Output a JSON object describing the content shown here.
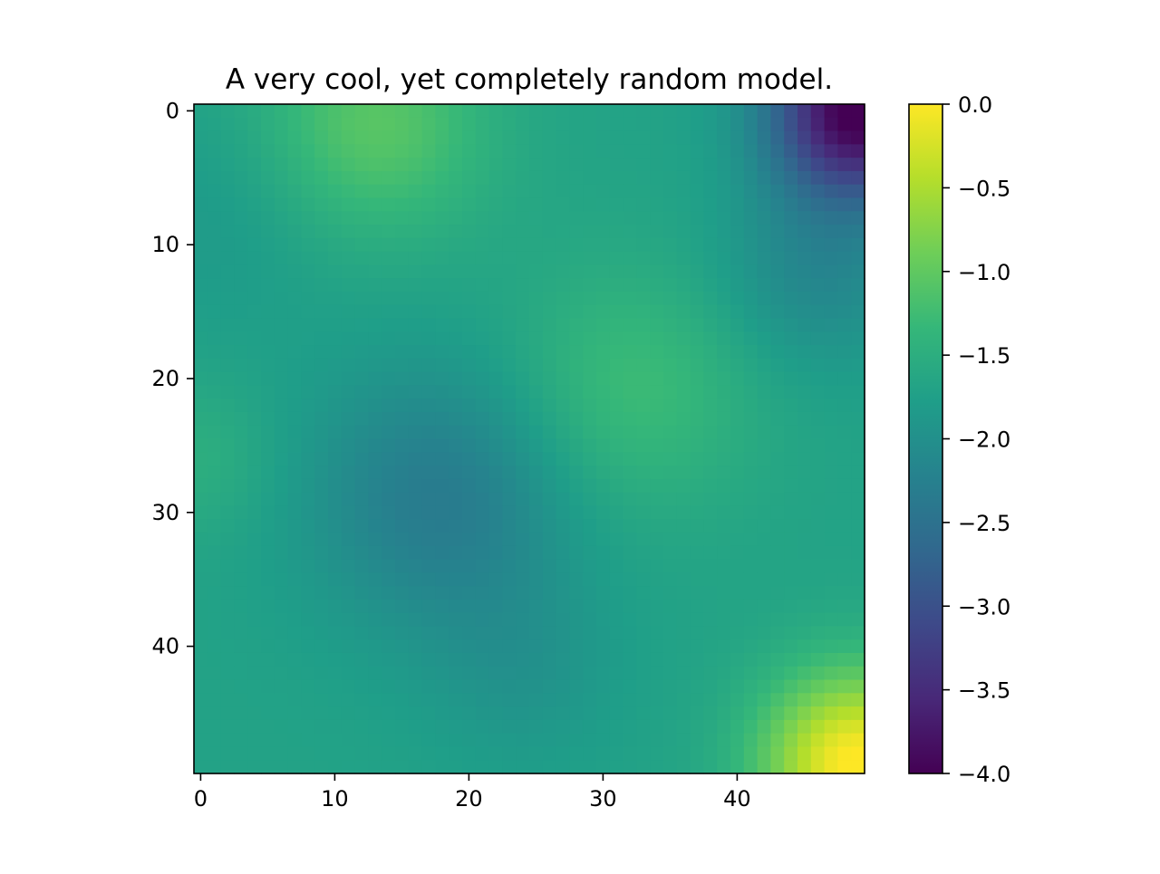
{
  "chart_data": {
    "type": "heatmap",
    "title": "A very cool, yet completely random model.",
    "xlabel": "",
    "ylabel": "",
    "grid": false,
    "colormap": "viridis",
    "shape": [
      50,
      50
    ],
    "x_ticks": [
      0,
      10,
      20,
      30,
      40
    ],
    "y_ticks": [
      0,
      10,
      20,
      30,
      40
    ],
    "x_tick_labels": [
      "0",
      "10",
      "20",
      "30",
      "40"
    ],
    "y_tick_labels": [
      "0",
      "10",
      "20",
      "30",
      "40"
    ],
    "xlim": [
      -0.5,
      49.5
    ],
    "ylim": [
      49.5,
      -0.5
    ],
    "colorbar": {
      "range": [
        -4.0,
        0.0
      ],
      "ticks": [
        0.0,
        -0.5,
        -1.0,
        -1.5,
        -2.0,
        -2.5,
        -3.0,
        -3.5,
        -4.0
      ],
      "tick_labels": [
        "0.0",
        "−0.5",
        "−1.0",
        "−1.5",
        "−2.0",
        "−2.5",
        "−3.0",
        "−3.5",
        "−4.0"
      ]
    },
    "field_description": "smooth random field; values estimated from colors",
    "base_value": -1.7,
    "features": [
      {
        "row": 0,
        "col": 49,
        "amplitude": -2.4,
        "sigma": 4.5
      },
      {
        "row": 49,
        "col": 49,
        "amplitude": 1.75,
        "sigma": 5
      },
      {
        "row": 1,
        "col": 13,
        "amplitude": 0.65,
        "sigma": 6
      },
      {
        "row": 21,
        "col": 32,
        "amplitude": 0.45,
        "sigma": 6.5
      },
      {
        "row": 29,
        "col": 18,
        "amplitude": -0.65,
        "sigma": 7
      },
      {
        "row": 26,
        "col": 0,
        "amplitude": 0.22,
        "sigma": 4
      },
      {
        "row": 8,
        "col": 2,
        "amplitude": -0.15,
        "sigma": 6
      },
      {
        "row": 12,
        "col": 46,
        "amplitude": -0.45,
        "sigma": 5
      },
      {
        "row": 42,
        "col": 24,
        "amplitude": -0.22,
        "sigma": 5
      }
    ],
    "colors": {
      "viridis_stops": [
        "#440154",
        "#482878",
        "#3e4989",
        "#31688e",
        "#26828e",
        "#1f9e89",
        "#35b779",
        "#6ece58",
        "#b5de2b",
        "#fde725"
      ]
    }
  }
}
